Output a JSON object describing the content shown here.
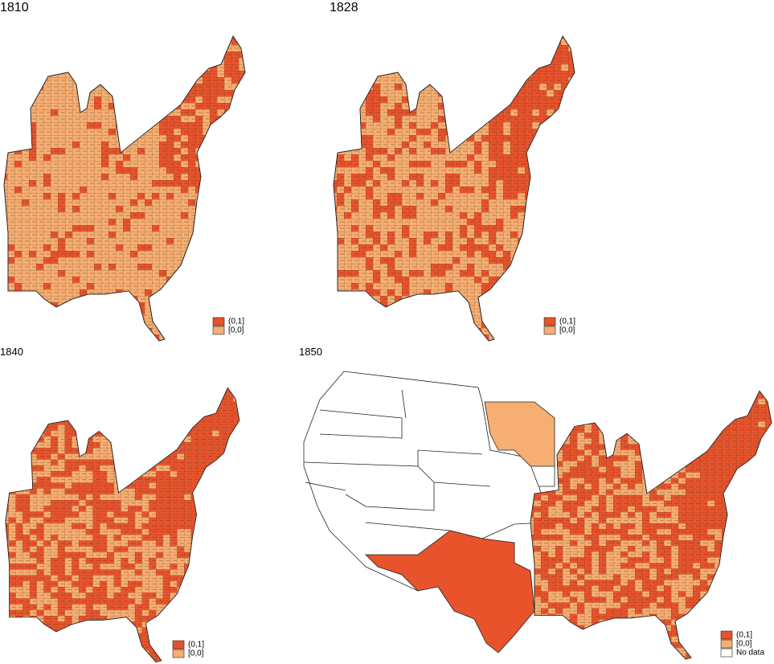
{
  "panels": [
    {
      "title": "1810",
      "legend": [
        {
          "label": "(0,1]",
          "color": "#e8532b"
        },
        {
          "label": "[0,0]",
          "color": "#f7ae72"
        }
      ]
    },
    {
      "title": "1828",
      "legend": [
        {
          "label": "(0,1]",
          "color": "#e8532b"
        },
        {
          "label": "[0,0]",
          "color": "#f7ae72"
        }
      ]
    },
    {
      "title": "1840",
      "legend": [
        {
          "label": "(0,1]",
          "color": "#e8532b"
        },
        {
          "label": "[0,0]",
          "color": "#f7ae72"
        }
      ]
    },
    {
      "title": "1850",
      "legend": [
        {
          "label": "(0,1]",
          "color": "#e8532b"
        },
        {
          "label": "[0,0]",
          "color": "#f7ae72"
        },
        {
          "label": "No data",
          "color": "#ffffff"
        }
      ]
    }
  ]
}
